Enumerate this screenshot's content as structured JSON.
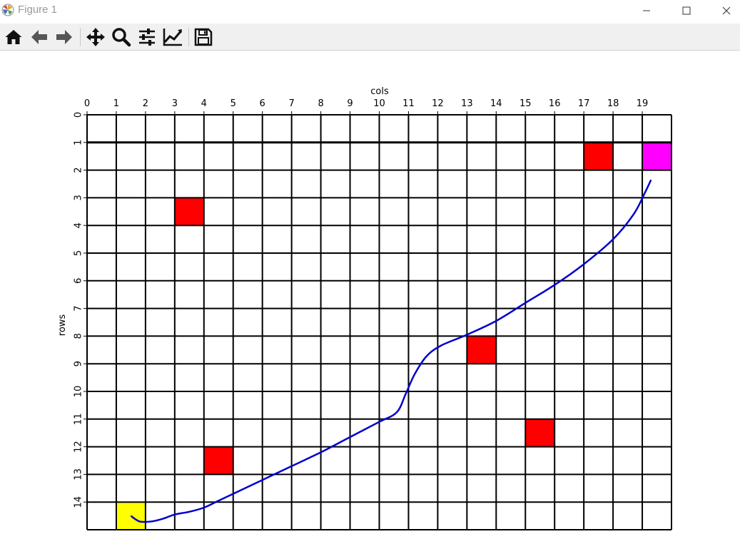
{
  "window": {
    "title": "Figure 1",
    "controls": [
      "minimize",
      "maximize",
      "close"
    ]
  },
  "toolbar": {
    "buttons": [
      {
        "name": "home",
        "icon": "home-icon"
      },
      {
        "name": "back",
        "icon": "arrow-left-icon"
      },
      {
        "name": "forward",
        "icon": "arrow-right-icon"
      },
      {
        "name": "pan",
        "icon": "move-icon"
      },
      {
        "name": "zoom",
        "icon": "magnifier-icon"
      },
      {
        "name": "configure-subplots",
        "icon": "sliders-icon"
      },
      {
        "name": "edit-axis",
        "icon": "line-chart-icon"
      },
      {
        "name": "save",
        "icon": "floppy-disk-icon"
      }
    ]
  },
  "chart_data": {
    "type": "heatmap",
    "xlabel": "cols",
    "ylabel": "rows",
    "n_cols": 20,
    "n_rows": 15,
    "x_ticks": [
      0,
      1,
      2,
      3,
      4,
      5,
      6,
      7,
      8,
      9,
      10,
      11,
      12,
      13,
      14,
      15,
      16,
      17,
      18,
      19
    ],
    "y_ticks": [
      0,
      1,
      2,
      3,
      4,
      5,
      6,
      7,
      8,
      9,
      10,
      11,
      12,
      13,
      14
    ],
    "x_axis_position": "top",
    "grid": true,
    "colors": {
      "obstacle": "#ff0000",
      "start": "#ffff00",
      "goal": "#ff00ff",
      "path": "#0000cc",
      "grid": "#000000"
    },
    "cells": [
      {
        "row": 1,
        "col": 17,
        "kind": "obstacle"
      },
      {
        "row": 1,
        "col": 19,
        "kind": "goal"
      },
      {
        "row": 3,
        "col": 3,
        "kind": "obstacle"
      },
      {
        "row": 8,
        "col": 13,
        "kind": "obstacle"
      },
      {
        "row": 11,
        "col": 15,
        "kind": "obstacle"
      },
      {
        "row": 12,
        "col": 4,
        "kind": "obstacle"
      },
      {
        "row": 14,
        "col": 1,
        "kind": "start"
      }
    ],
    "path": [
      [
        1.5,
        14.5
      ],
      [
        1.8,
        14.7
      ],
      [
        2.2,
        14.7
      ],
      [
        2.6,
        14.6
      ],
      [
        3.0,
        14.45
      ],
      [
        3.5,
        14.35
      ],
      [
        4.0,
        14.2
      ],
      [
        4.5,
        13.95
      ],
      [
        5.0,
        13.7
      ],
      [
        6.0,
        13.2
      ],
      [
        7.0,
        12.7
      ],
      [
        8.0,
        12.2
      ],
      [
        9.0,
        11.65
      ],
      [
        10.0,
        11.1
      ],
      [
        10.6,
        10.75
      ],
      [
        10.9,
        10.1
      ],
      [
        11.2,
        9.4
      ],
      [
        11.6,
        8.75
      ],
      [
        12.1,
        8.35
      ],
      [
        13.0,
        7.95
      ],
      [
        14.0,
        7.45
      ],
      [
        15.0,
        6.8
      ],
      [
        16.0,
        6.15
      ],
      [
        17.0,
        5.4
      ],
      [
        18.0,
        4.5
      ],
      [
        18.7,
        3.6
      ],
      [
        19.1,
        2.8
      ],
      [
        19.3,
        2.35
      ]
    ]
  }
}
